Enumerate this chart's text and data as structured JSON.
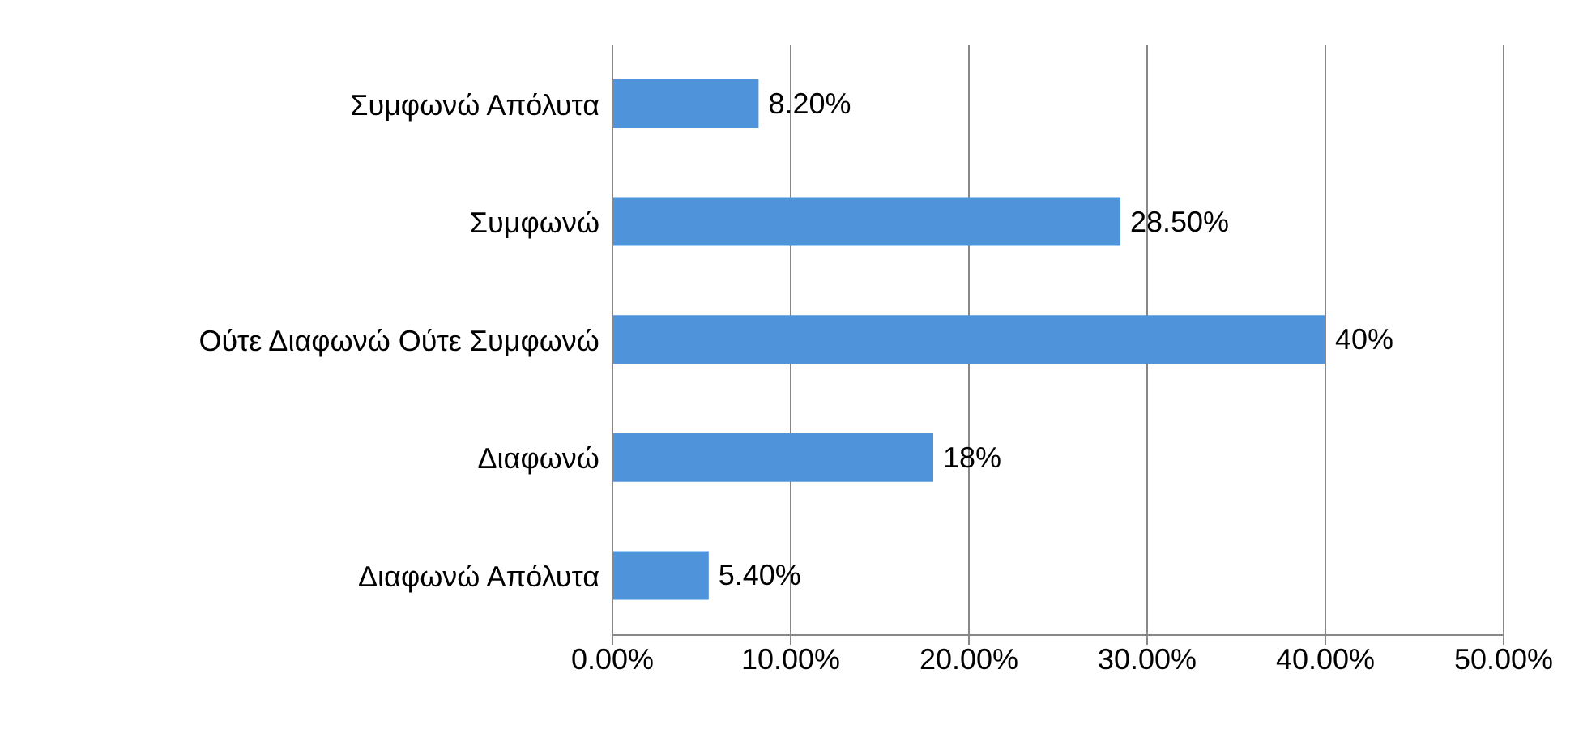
{
  "chart_data": {
    "type": "bar",
    "orientation": "horizontal",
    "categories": [
      "Συμφωνώ Απόλυτα",
      "Συμφωνώ",
      "Ούτε Διαφωνώ Ούτε Συμφωνώ",
      "Διαφωνώ",
      "Διαφωνώ Απόλυτα"
    ],
    "values": [
      8.2,
      28.5,
      40,
      18,
      5.4
    ],
    "value_labels": [
      "8.20%",
      "28.50%",
      "40%",
      "18%",
      "5.40%"
    ],
    "color": "#4f94db",
    "xlim": [
      0,
      50
    ],
    "xticks": [
      {
        "value": 0,
        "label": "0.00%"
      },
      {
        "value": 10,
        "label": "10.00%"
      },
      {
        "value": 20,
        "label": "20.00%"
      },
      {
        "value": 30,
        "label": "30.00%"
      },
      {
        "value": 40,
        "label": "40.00%"
      },
      {
        "value": 50,
        "label": "50.00%"
      }
    ],
    "grid": "x"
  }
}
